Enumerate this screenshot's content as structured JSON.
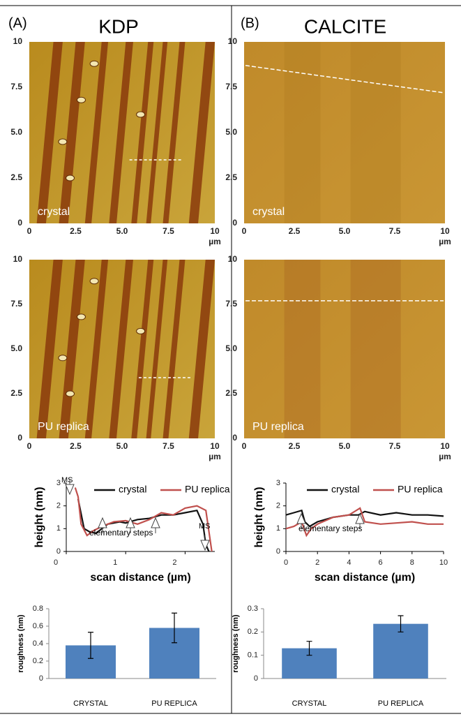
{
  "panels": [
    {
      "label": "(A)",
      "title": "KDP",
      "images": [
        {
          "label": "crystal",
          "xticks": [
            0,
            2.5,
            {
              "value": 5,
              "label": "5.0"
            },
            7.5,
            10
          ],
          "yticks": [
            0,
            2.5,
            {
              "value": 5,
              "label": "5.0"
            },
            7.5,
            10
          ],
          "xlim": [
            0,
            10
          ],
          "ylim": [
            0,
            10
          ],
          "unit": "µm"
        },
        {
          "label": "PU replica",
          "xticks": [
            0,
            2.5,
            {
              "value": 5,
              "label": "5.0"
            },
            7.5,
            10
          ],
          "yticks": [
            0,
            2.5,
            {
              "value": 5,
              "label": "5.0"
            },
            7.5,
            10
          ],
          "xlim": [
            0,
            10
          ],
          "ylim": [
            0,
            10
          ],
          "unit": "µm"
        }
      ],
      "profile": {
        "type": "line",
        "xlabel": "scan distance (µm)",
        "ylabel": "height (nm)",
        "xlim": [
          0,
          2.5
        ],
        "ylim": [
          0,
          3
        ],
        "xticks": [
          0,
          1,
          2
        ],
        "yticks": [
          0,
          1,
          2,
          3
        ],
        "annotations": [
          "MS",
          "MS",
          "elementary steps"
        ],
        "series": [
          {
            "name": "crystal",
            "color": "#111111",
            "x": [
              0.2,
              0.3,
              0.4,
              0.5,
              0.7,
              0.9,
              1.0,
              1.2,
              1.4,
              1.6,
              1.8,
              2.0,
              2.2,
              2.3,
              2.35,
              2.4
            ],
            "values": [
              2.3,
              1.0,
              0.85,
              0.8,
              1.2,
              1.3,
              1.25,
              1.4,
              1.45,
              1.6,
              1.6,
              1.7,
              1.8,
              1.2,
              0.3,
              0
            ]
          },
          {
            "name": "PU replica",
            "color": "#c0504d",
            "x": [
              0.15,
              0.2,
              0.25,
              0.35,
              0.45,
              0.6,
              0.8,
              1.0,
              1.2,
              1.4,
              1.6,
              1.8,
              2.0,
              2.2,
              2.35,
              2.45
            ],
            "values": [
              2.8,
              2.4,
              1.2,
              0.7,
              0.9,
              1.1,
              1.3,
              1.35,
              1.2,
              1.4,
              1.7,
              1.6,
              1.9,
              2.0,
              1.8,
              0
            ]
          }
        ]
      },
      "roughness": {
        "type": "bar",
        "ylabel": "roughness (nm)",
        "categories": [
          "CRYSTAL",
          "PU REPLICA"
        ],
        "values": [
          0.38,
          0.58
        ],
        "errors": [
          0.15,
          0.17
        ],
        "color": "#4f81bd",
        "ylim": [
          0,
          0.8
        ],
        "yticks": [
          0,
          0.2,
          0.4,
          0.6,
          0.8
        ]
      }
    },
    {
      "label": "(B)",
      "title": "CALCITE",
      "images": [
        {
          "label": "crystal",
          "xticks": [
            0,
            2.5,
            {
              "value": 5,
              "label": "5.0"
            },
            7.5,
            10
          ],
          "yticks": [
            0,
            2.5,
            {
              "value": 5,
              "label": "5.0"
            },
            7.5,
            10
          ],
          "xlim": [
            0,
            10
          ],
          "ylim": [
            0,
            10
          ],
          "unit": "µm"
        },
        {
          "label": "PU replica",
          "xticks": [
            0,
            2.5,
            {
              "value": 5,
              "label": "5.0"
            },
            7.5,
            10
          ],
          "yticks": [
            0,
            2.5,
            {
              "value": 5,
              "label": "5.0"
            },
            7.5,
            10
          ],
          "xlim": [
            0,
            10
          ],
          "ylim": [
            0,
            10
          ],
          "unit": "µm"
        }
      ],
      "profile": {
        "type": "line",
        "xlabel": "scan distance (µm)",
        "ylabel": "height (nm)",
        "xlim": [
          0,
          10
        ],
        "ylim": [
          0,
          3
        ],
        "xticks": [
          0,
          2,
          4,
          6,
          8,
          10
        ],
        "yticks": [
          0,
          1,
          2,
          3
        ],
        "annotations": [
          "elementary steps"
        ],
        "series": [
          {
            "name": "crystal",
            "color": "#111111",
            "x": [
              0,
              0.5,
              1,
              1.2,
              1.5,
              2,
              3,
              4,
              4.6,
              5,
              6,
              7,
              8,
              9,
              10
            ],
            "values": [
              1.6,
              1.7,
              1.8,
              1.3,
              1.1,
              1.3,
              1.5,
              1.6,
              1.6,
              1.75,
              1.6,
              1.7,
              1.6,
              1.6,
              1.55
            ]
          },
          {
            "name": "PU replica",
            "color": "#c0504d",
            "x": [
              0,
              0.5,
              1,
              1.3,
              1.6,
              2,
              3,
              4,
              4.7,
              5,
              6,
              7,
              8,
              9,
              10
            ],
            "values": [
              1.0,
              1.1,
              1.3,
              0.7,
              1.0,
              1.2,
              1.5,
              1.6,
              1.9,
              1.3,
              1.2,
              1.25,
              1.3,
              1.2,
              1.2
            ]
          }
        ]
      },
      "roughness": {
        "type": "bar",
        "ylabel": "roughness (nm)",
        "categories": [
          "CRYSTAL",
          "PU REPLICA"
        ],
        "values": [
          0.13,
          0.235
        ],
        "errors": [
          0.03,
          0.035
        ],
        "color": "#4f81bd",
        "ylim": [
          0,
          0.3
        ],
        "yticks": [
          0,
          0.1,
          0.2,
          0.3
        ]
      }
    }
  ]
}
